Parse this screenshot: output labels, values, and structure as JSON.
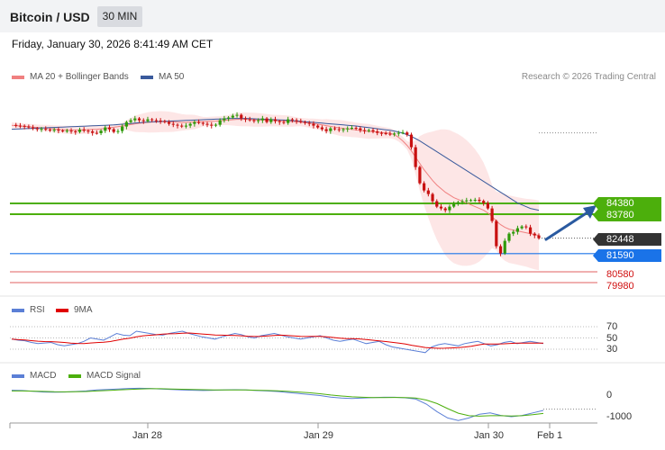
{
  "header": {
    "title": "Bitcoin / USD",
    "timeframe": "30 MIN"
  },
  "date_text": "Friday, January 30, 2026 8:41:49 AM CET",
  "legend": {
    "ma20": "MA 20 + Bollinger Bands",
    "ma50": "MA 50",
    "rsi": "RSI",
    "rsi_ma": "9MA",
    "macd": "MACD",
    "macd_signal": "MACD Signal"
  },
  "copyright": "Research © 2026 Trading Central",
  "colors": {
    "candle_up": "#2e9a0a",
    "candle_down": "#c81010",
    "ma20": "#f08080",
    "ma50": "#3a5a9c",
    "bollinger": "#fde2e2",
    "green_level": "#4caf0c",
    "blue_level": "#1a73e8",
    "red_level": "#e06060",
    "rsi": "#5b7fd6",
    "rsi_ma": "#e00000",
    "macd": "#5b7fd6",
    "macd_signal": "#4caf0c",
    "arrow": "#2a5aa0"
  },
  "levels": {
    "resistance_1": "84380",
    "resistance_2": "83780",
    "last": "82448",
    "pivot": "81590",
    "support_1": "80580",
    "support_2": "79980"
  },
  "rsi_axis": [
    "70",
    "50",
    "30"
  ],
  "macd_axis": [
    "0",
    "-1000"
  ],
  "x_labels": [
    "Jan 28",
    "Jan 29",
    "Jan 30",
    "Feb 1"
  ],
  "chart_data": {
    "type": "candlestick",
    "title": "Bitcoin / USD",
    "y_unit": "USD",
    "ylim": [
      79800,
      89200
    ],
    "x_labels": [
      "Jan 28",
      "Jan 29",
      "Jan 30",
      "Feb 1"
    ],
    "close_series": [
      88740,
      88700,
      88690,
      88650,
      88600,
      88550,
      88500,
      88520,
      88480,
      88450,
      88470,
      88430,
      88400,
      88420,
      88380,
      88350,
      88480,
      88420,
      88380,
      88300,
      88280,
      88420,
      88600,
      88500,
      88350,
      88400,
      88650,
      88900,
      89000,
      89100,
      89000,
      88950,
      89050,
      89000,
      88980,
      88950,
      88900,
      88800,
      88750,
      88700,
      88650,
      88700,
      88800,
      88900,
      88850,
      88800,
      88750,
      88700,
      88750,
      89000,
      89100,
      89150,
      89250,
      89300,
      89100,
      89050,
      89000,
      88950,
      89000,
      89100,
      88900,
      89050,
      88950,
      88900,
      88850,
      89050,
      89000,
      88950,
      88900,
      88850,
      88800,
      88700,
      88600,
      88500,
      88400,
      88550,
      88500,
      88450,
      88500,
      88550,
      88580,
      88550,
      88450,
      88400,
      88450,
      88380,
      88300,
      88280,
      88250,
      88230,
      88260,
      88300,
      88320,
      88200,
      87500,
      86400,
      85500,
      85100,
      84900,
      84500,
      84200,
      84100,
      84000,
      84200,
      84350,
      84450,
      84500,
      84550,
      84560,
      84580,
      84520,
      84400,
      84100,
      83400,
      82000,
      81600,
      82300,
      82700,
      82800,
      83000,
      83100,
      83050,
      82700,
      82600,
      82448
    ],
    "ma20": [
      88720,
      88700,
      88680,
      88660,
      88640,
      88620,
      88600,
      88580,
      88560,
      88540,
      88520,
      88500,
      88480,
      88470,
      88460,
      88450,
      88460,
      88470,
      88480,
      88490,
      88500,
      88520,
      88550,
      88580,
      88610,
      88640,
      88680,
      88720,
      88760,
      88800,
      88830,
      88860,
      88880,
      88900,
      88910,
      88920,
      88920,
      88910,
      88900,
      88890,
      88880,
      88880,
      88890,
      88900,
      88910,
      88920,
      88930,
      88940,
      88950,
      88970,
      88990,
      89010,
      89030,
      89050,
      89050,
      89050,
      89040,
      89030,
      89020,
      89010,
      89000,
      88990,
      88980,
      88970,
      88960,
      88950,
      88930,
      88910,
      88890,
      88870,
      88840,
      88810,
      88780,
      88740,
      88700,
      88660,
      88620,
      88580,
      88550,
      88520,
      88490,
      88460,
      88430,
      88400,
      88380,
      88360,
      88340,
      88320,
      88300,
      88280,
      88200,
      88050,
      87850,
      87600,
      87300,
      86950,
      86600,
      86250,
      85950,
      85650,
      85400,
      85200,
      85000,
      84850,
      84700,
      84600,
      84500,
      84400,
      84300,
      84200,
      84100,
      84000,
      83850,
      83650,
      83400,
      83200,
      83050,
      82950,
      82900,
      82850,
      82800,
      82750,
      82700,
      82650,
      82600
    ],
    "ma50": [
      88500,
      88510,
      88520,
      88530,
      88540,
      88550,
      88560,
      88570,
      88580,
      88590,
      88600,
      88610,
      88620,
      88630,
      88640,
      88650,
      88660,
      88670,
      88680,
      88690,
      88700,
      88710,
      88720,
      88730,
      88740,
      88760,
      88780,
      88800,
      88820,
      88840,
      88860,
      88880,
      88900,
      88910,
      88920,
      88930,
      88940,
      88950,
      88960,
      88970,
      88980,
      88990,
      89000,
      89010,
      89020,
      89030,
      89040,
      89050,
      89060,
      89070,
      89080,
      89090,
      89100,
      89100,
      89100,
      89100,
      89090,
      89080,
      89070,
      89060,
      89050,
      89040,
      89030,
      89020,
      89010,
      89000,
      88980,
      88960,
      88940,
      88920,
      88900,
      88880,
      88860,
      88840,
      88820,
      88800,
      88780,
      88760,
      88740,
      88720,
      88700,
      88680,
      88650,
      88620,
      88590,
      88560,
      88530,
      88500,
      88470,
      88440,
      88400,
      88350,
      88280,
      88200,
      88100,
      87980,
      87850,
      87700,
      87550,
      87400,
      87250,
      87100,
      86950,
      86800,
      86650,
      86500,
      86350,
      86200,
      86050,
      85900,
      85750,
      85600,
      85450,
      85300,
      85150,
      85000,
      84850,
      84700,
      84550,
      84400,
      84300,
      84200,
      84100,
      84050,
      84000
    ],
    "levels": [
      84380,
      83780,
      82448,
      81590,
      80580,
      79980
    ],
    "rsi": {
      "axis": [
        70,
        50,
        30
      ],
      "values": [
        48,
        46,
        45,
        42,
        40,
        41,
        42,
        38,
        36,
        38,
        40,
        44,
        50,
        48,
        46,
        52,
        58,
        55,
        54,
        62,
        60,
        58,
        56,
        55,
        58,
        60,
        62,
        58,
        55,
        52,
        50,
        48,
        52,
        55,
        58,
        56,
        52,
        50,
        54,
        56,
        58,
        55,
        52,
        50,
        48,
        50,
        52,
        54,
        50,
        46,
        44,
        46,
        48,
        44,
        40,
        42,
        44,
        38,
        34,
        32,
        30,
        28,
        26,
        24,
        34,
        38,
        40,
        38,
        36,
        40,
        42,
        44,
        40,
        36,
        38,
        42,
        44,
        40,
        42,
        44,
        42,
        40
      ]
    },
    "macd": {
      "axis": [
        0,
        -1000
      ],
      "values": [
        50,
        40,
        10,
        -20,
        -30,
        -20,
        0,
        20,
        60,
        80,
        100,
        120,
        130,
        120,
        100,
        80,
        60,
        50,
        40,
        50,
        60,
        70,
        60,
        40,
        20,
        0,
        -40,
        -80,
        -120,
        -160,
        -220,
        -260,
        -280,
        -260,
        -240,
        -230,
        -230,
        -250,
        -300,
        -500,
        -800,
        -1050,
        -1150,
        -1050,
        -900,
        -850,
        -950,
        -1000,
        -950,
        -850,
        -750
      ],
      "signal": [
        20,
        20,
        15,
        5,
        -10,
        -15,
        -10,
        0,
        20,
        40,
        60,
        80,
        100,
        110,
        110,
        100,
        90,
        80,
        70,
        65,
        65,
        65,
        60,
        50,
        40,
        25,
        5,
        -20,
        -50,
        -90,
        -140,
        -180,
        -210,
        -230,
        -240,
        -240,
        -235,
        -240,
        -260,
        -340,
        -480,
        -680,
        -860,
        -960,
        -980,
        -960,
        -960,
        -970,
        -960,
        -920,
        -870
      ]
    }
  }
}
